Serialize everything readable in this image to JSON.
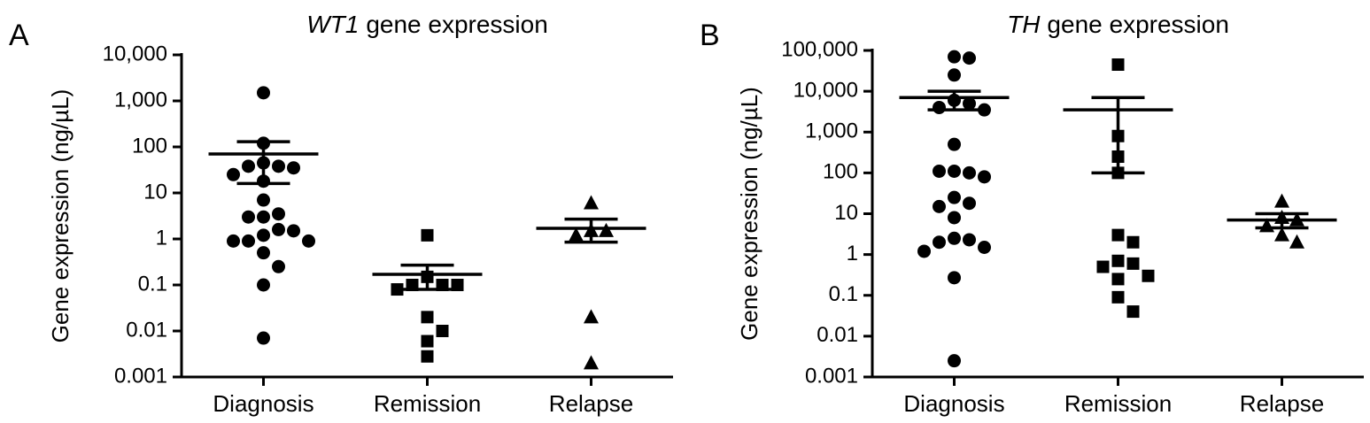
{
  "chart_data": [
    {
      "type": "scatter",
      "panel_label": "A",
      "title_gene": "WT1",
      "title": "gene expression",
      "y_label": "Gene expression (ng/µL)",
      "log_y": true,
      "ylim": [
        0.001,
        10000
      ],
      "yticks": [
        0.001,
        0.01,
        0.1,
        1,
        10,
        100,
        {
          "value": 1000,
          "label": "1,000"
        },
        {
          "value": 10000,
          "label": "10,000"
        }
      ],
      "categories": [
        "Diagnosis",
        "Remission",
        "Relapse"
      ],
      "markers": [
        "circle",
        "square",
        "triangle"
      ],
      "color": "#000000",
      "points": [
        [
          1500,
          120,
          45,
          38,
          38,
          35,
          25,
          18,
          7,
          3.5,
          3,
          3,
          1.6,
          1.5,
          1.2,
          0.9,
          0.9,
          0.9,
          0.5,
          0.25,
          0.1,
          0.007
        ],
        [
          1.2,
          0.15,
          0.1,
          0.1,
          0.1,
          0.08,
          0.02,
          0.01,
          0.006,
          0.0028
        ],
        [
          6,
          1.5,
          1.5,
          1.2,
          0.02,
          0.002
        ]
      ],
      "mean": [
        70,
        0.17,
        1.7
      ],
      "sem_high": [
        130,
        0.27,
        2.7
      ],
      "sem_low": [
        16,
        0.08,
        0.85
      ]
    },
    {
      "type": "scatter",
      "panel_label": "B",
      "title_gene": "TH",
      "title": "gene expression",
      "y_label": "Gene expression (ng/µL)",
      "log_y": true,
      "ylim": [
        0.001,
        100000
      ],
      "yticks": [
        0.001,
        0.01,
        0.1,
        1,
        10,
        100,
        {
          "value": 1000,
          "label": "1,000"
        },
        {
          "value": 10000,
          "label": "10,000"
        },
        {
          "value": 100000,
          "label": "100,000"
        }
      ],
      "categories": [
        "Diagnosis",
        "Remission",
        "Relapse"
      ],
      "markers": [
        "circle",
        "square",
        "triangle"
      ],
      "color": "#000000",
      "points": [
        [
          70000,
          65000,
          25000,
          6000,
          5000,
          4000,
          3500,
          500,
          110,
          100,
          110,
          80,
          25,
          18,
          15,
          8,
          2.5,
          2.3,
          2,
          1.5,
          1.2,
          0.27,
          0.0025
        ],
        [
          45000,
          800,
          250,
          100,
          3,
          2,
          0.7,
          0.6,
          0.5,
          0.3,
          0.25,
          0.09,
          0.04
        ],
        [
          20,
          8,
          7,
          5,
          3,
          2
        ]
      ],
      "mean": [
        7000,
        3500,
        7
      ],
      "sem_high": [
        10000,
        7000,
        10
      ],
      "sem_low": [
        3500,
        100,
        4.5
      ]
    }
  ]
}
